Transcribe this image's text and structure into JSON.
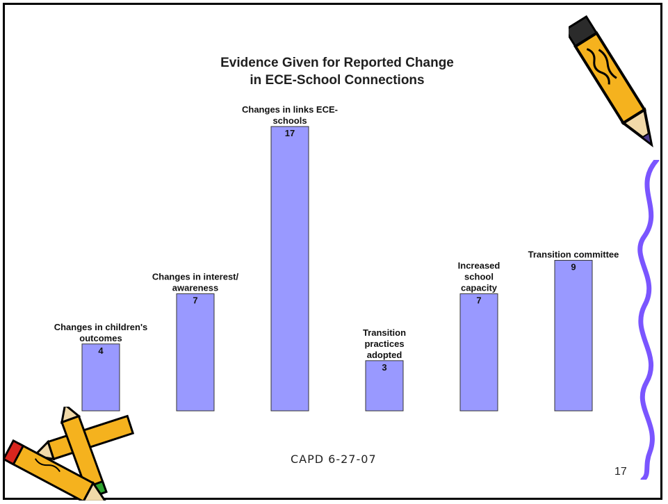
{
  "slide": {
    "footer": "CAPD  6-27-07",
    "page_number": "17"
  },
  "chart_data": {
    "type": "bar",
    "title_lines": [
      "Evidence Given for Reported Change",
      "in ECE-School Connections"
    ],
    "categories": [
      [
        "Changes in children's",
        "outcomes"
      ],
      [
        "Changes in interest/",
        "awareness"
      ],
      [
        "Changes in links ECE-",
        "schools"
      ],
      [
        "Transition",
        "practices",
        "adopted"
      ],
      [
        "Increased",
        "school",
        "capacity"
      ],
      [
        "Transition committee"
      ]
    ],
    "values": [
      4,
      7,
      17,
      3,
      7,
      9
    ],
    "ylim": [
      0,
      17
    ],
    "xlabel": "",
    "ylabel": "",
    "grid": false,
    "colors": {
      "bar_fill": "#9999ff",
      "bar_stroke": "#333333"
    }
  }
}
